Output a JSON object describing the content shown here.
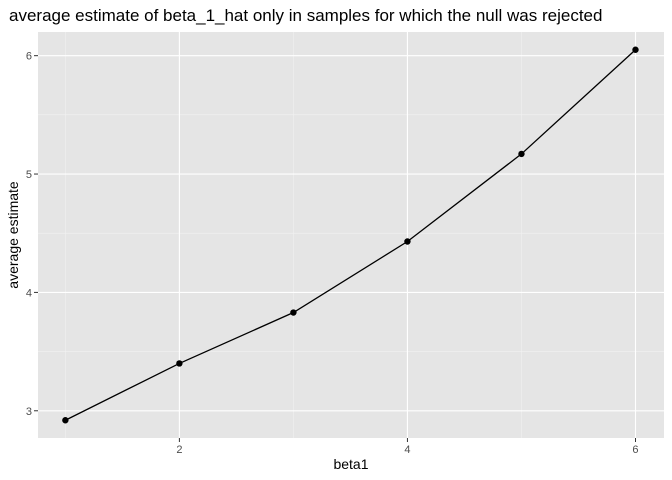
{
  "chart_data": {
    "type": "line",
    "title": "average estimate of beta_1_hat only in samples for which the null was rejected",
    "xlabel": "beta1",
    "ylabel": "average estimate",
    "xlim": [
      0.76,
      6.25
    ],
    "ylim": [
      2.77,
      6.2
    ],
    "x_ticks": [
      2,
      4,
      6
    ],
    "y_ticks": [
      3,
      4,
      5,
      6
    ],
    "x_tick_labels": [
      "2",
      "4",
      "6"
    ],
    "y_tick_labels": [
      "3",
      "4",
      "5",
      "6"
    ],
    "grid": true,
    "series": [
      {
        "x": [
          1,
          2,
          3,
          4,
          5,
          6
        ],
        "values": [
          2.92,
          3.4,
          3.83,
          4.43,
          5.17,
          6.05
        ],
        "markers": true
      }
    ],
    "colors": {
      "panel_background": "#e5e5e5",
      "grid_major": "#ffffff",
      "line": "#000000",
      "point": "#000000",
      "tick_label": "#4d4d4d"
    }
  }
}
